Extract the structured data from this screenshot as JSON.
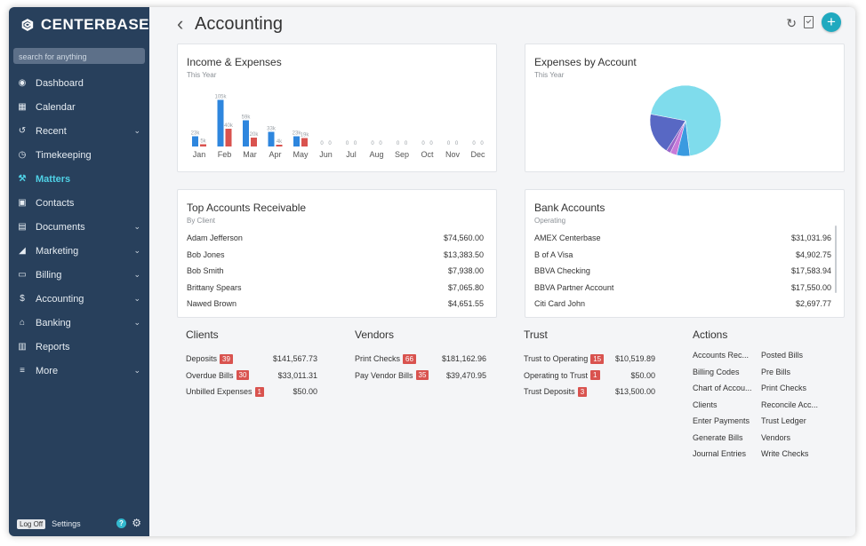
{
  "app": {
    "name": "CENTERBASE"
  },
  "search": {
    "placeholder": "search for anything"
  },
  "sidebar": {
    "items": [
      {
        "label": "Dashboard",
        "icon": "dashboard-icon",
        "glyph": "◉",
        "chevron": false,
        "active": false
      },
      {
        "label": "Calendar",
        "icon": "calendar-icon",
        "glyph": "▦",
        "chevron": false,
        "active": false
      },
      {
        "label": "Recent",
        "icon": "history-icon",
        "glyph": "↺",
        "chevron": true,
        "active": false
      },
      {
        "label": "Timekeeping",
        "icon": "clock-icon",
        "glyph": "◷",
        "chevron": false,
        "active": false
      },
      {
        "label": "Matters",
        "icon": "gavel-icon",
        "glyph": "⚒",
        "chevron": false,
        "active": true
      },
      {
        "label": "Contacts",
        "icon": "contact-card-icon",
        "glyph": "▣",
        "chevron": false,
        "active": false
      },
      {
        "label": "Documents",
        "icon": "documents-icon",
        "glyph": "▤",
        "chevron": true,
        "active": false
      },
      {
        "label": "Marketing",
        "icon": "megaphone-icon",
        "glyph": "◢",
        "chevron": true,
        "active": false
      },
      {
        "label": "Billing",
        "icon": "credit-card-icon",
        "glyph": "▭",
        "chevron": true,
        "active": false
      },
      {
        "label": "Accounting",
        "icon": "dollar-icon",
        "glyph": "$",
        "chevron": true,
        "active": false
      },
      {
        "label": "Banking",
        "icon": "bank-icon",
        "glyph": "⌂",
        "chevron": true,
        "active": false
      },
      {
        "label": "Reports",
        "icon": "bar-chart-icon",
        "glyph": "▥",
        "chevron": false,
        "active": false
      },
      {
        "label": "More",
        "icon": "menu-icon",
        "glyph": "≡",
        "chevron": true,
        "active": false
      }
    ],
    "footer": {
      "logoff": "Log Off",
      "settings": "Settings",
      "help": "?"
    }
  },
  "header": {
    "title": "Accounting"
  },
  "income_expenses": {
    "title": "Income & Expenses",
    "subtitle": "This Year",
    "chart_data": {
      "type": "bar",
      "categories": [
        "Jan",
        "Feb",
        "Mar",
        "Apr",
        "May",
        "Jun",
        "Jul",
        "Aug",
        "Sep",
        "Oct",
        "Nov",
        "Dec"
      ],
      "series": [
        {
          "values": [
            23,
            105,
            59,
            33,
            23,
            0,
            0,
            0,
            0,
            0,
            0,
            0
          ],
          "labels": [
            "23k",
            "105k",
            "59k",
            "33k",
            "23k",
            "0",
            "0",
            "0",
            "0",
            "0",
            "0",
            "0"
          ],
          "color": "#2e86de"
        },
        {
          "values": [
            5,
            40,
            20,
            4,
            19,
            0,
            0,
            0,
            0,
            0,
            0,
            0
          ],
          "labels": [
            "5k",
            "40k",
            "20k",
            "4k",
            "19k",
            "0",
            "0",
            "0",
            "0",
            "0",
            "0",
            "0"
          ],
          "color": "#d9534f"
        }
      ],
      "ylim": [
        0,
        110
      ]
    }
  },
  "expenses_by_account": {
    "title": "Expenses by Account",
    "subtitle": "This Year",
    "chart_data": {
      "type": "pie",
      "values": [
        70,
        19,
        2,
        3,
        6
      ],
      "colors": [
        "#7fdcec",
        "#5868c4",
        "#9a67c9",
        "#c87bd9",
        "#3a9ae0"
      ]
    }
  },
  "receivable": {
    "title": "Top Accounts Receivable",
    "subtitle": "By Client",
    "rows": [
      {
        "name": "Adam Jefferson",
        "amount": "$74,560.00"
      },
      {
        "name": "Bob Jones",
        "amount": "$13,383.50"
      },
      {
        "name": "Bob Smith",
        "amount": "$7,938.00"
      },
      {
        "name": "Brittany Spears",
        "amount": "$7,065.80"
      },
      {
        "name": "Nawed Brown",
        "amount": "$4,651.55"
      }
    ]
  },
  "bank_accounts": {
    "title": "Bank Accounts",
    "subtitle": "Operating",
    "rows": [
      {
        "name": "AMEX Centerbase",
        "amount": "$31,031.96"
      },
      {
        "name": "B of A Visa",
        "amount": "$4,902.75"
      },
      {
        "name": "BBVA Checking",
        "amount": "$17,583.94"
      },
      {
        "name": "BBVA Partner Account",
        "amount": "$17,550.00"
      },
      {
        "name": "Citi Card John",
        "amount": "$2,697.77"
      }
    ]
  },
  "clients": {
    "title": "Clients",
    "rows": [
      {
        "label": "Deposits",
        "badge": "39",
        "amount": "$141,567.73"
      },
      {
        "label": "Overdue Bills",
        "badge": "30",
        "amount": "$33,011.31"
      },
      {
        "label": "Unbilled Expenses",
        "badge": "1",
        "amount": "$50.00"
      }
    ]
  },
  "vendors": {
    "title": "Vendors",
    "rows": [
      {
        "label": "Print Checks",
        "badge": "66",
        "amount": "$181,162.96"
      },
      {
        "label": "Pay Vendor Bills",
        "badge": "35",
        "amount": "$39,470.95"
      }
    ]
  },
  "trust": {
    "title": "Trust",
    "rows": [
      {
        "label": "Trust to Operating",
        "badge": "15",
        "amount": "$10,519.89"
      },
      {
        "label": "Operating to Trust",
        "badge": "1",
        "amount": "$50.00"
      },
      {
        "label": "Trust Deposits",
        "badge": "3",
        "amount": "$13,500.00"
      }
    ]
  },
  "actions": {
    "title": "Actions",
    "items": [
      "Accounts Rec...",
      "Posted Bills",
      "Billing Codes",
      "Pre Bills",
      "Chart of Accou...",
      "Print Checks",
      "Clients",
      "Reconcile Acc...",
      "Enter Payments",
      "Trust Ledger",
      "Generate Bills",
      "Vendors",
      "Journal Entries",
      "Write Checks"
    ]
  }
}
